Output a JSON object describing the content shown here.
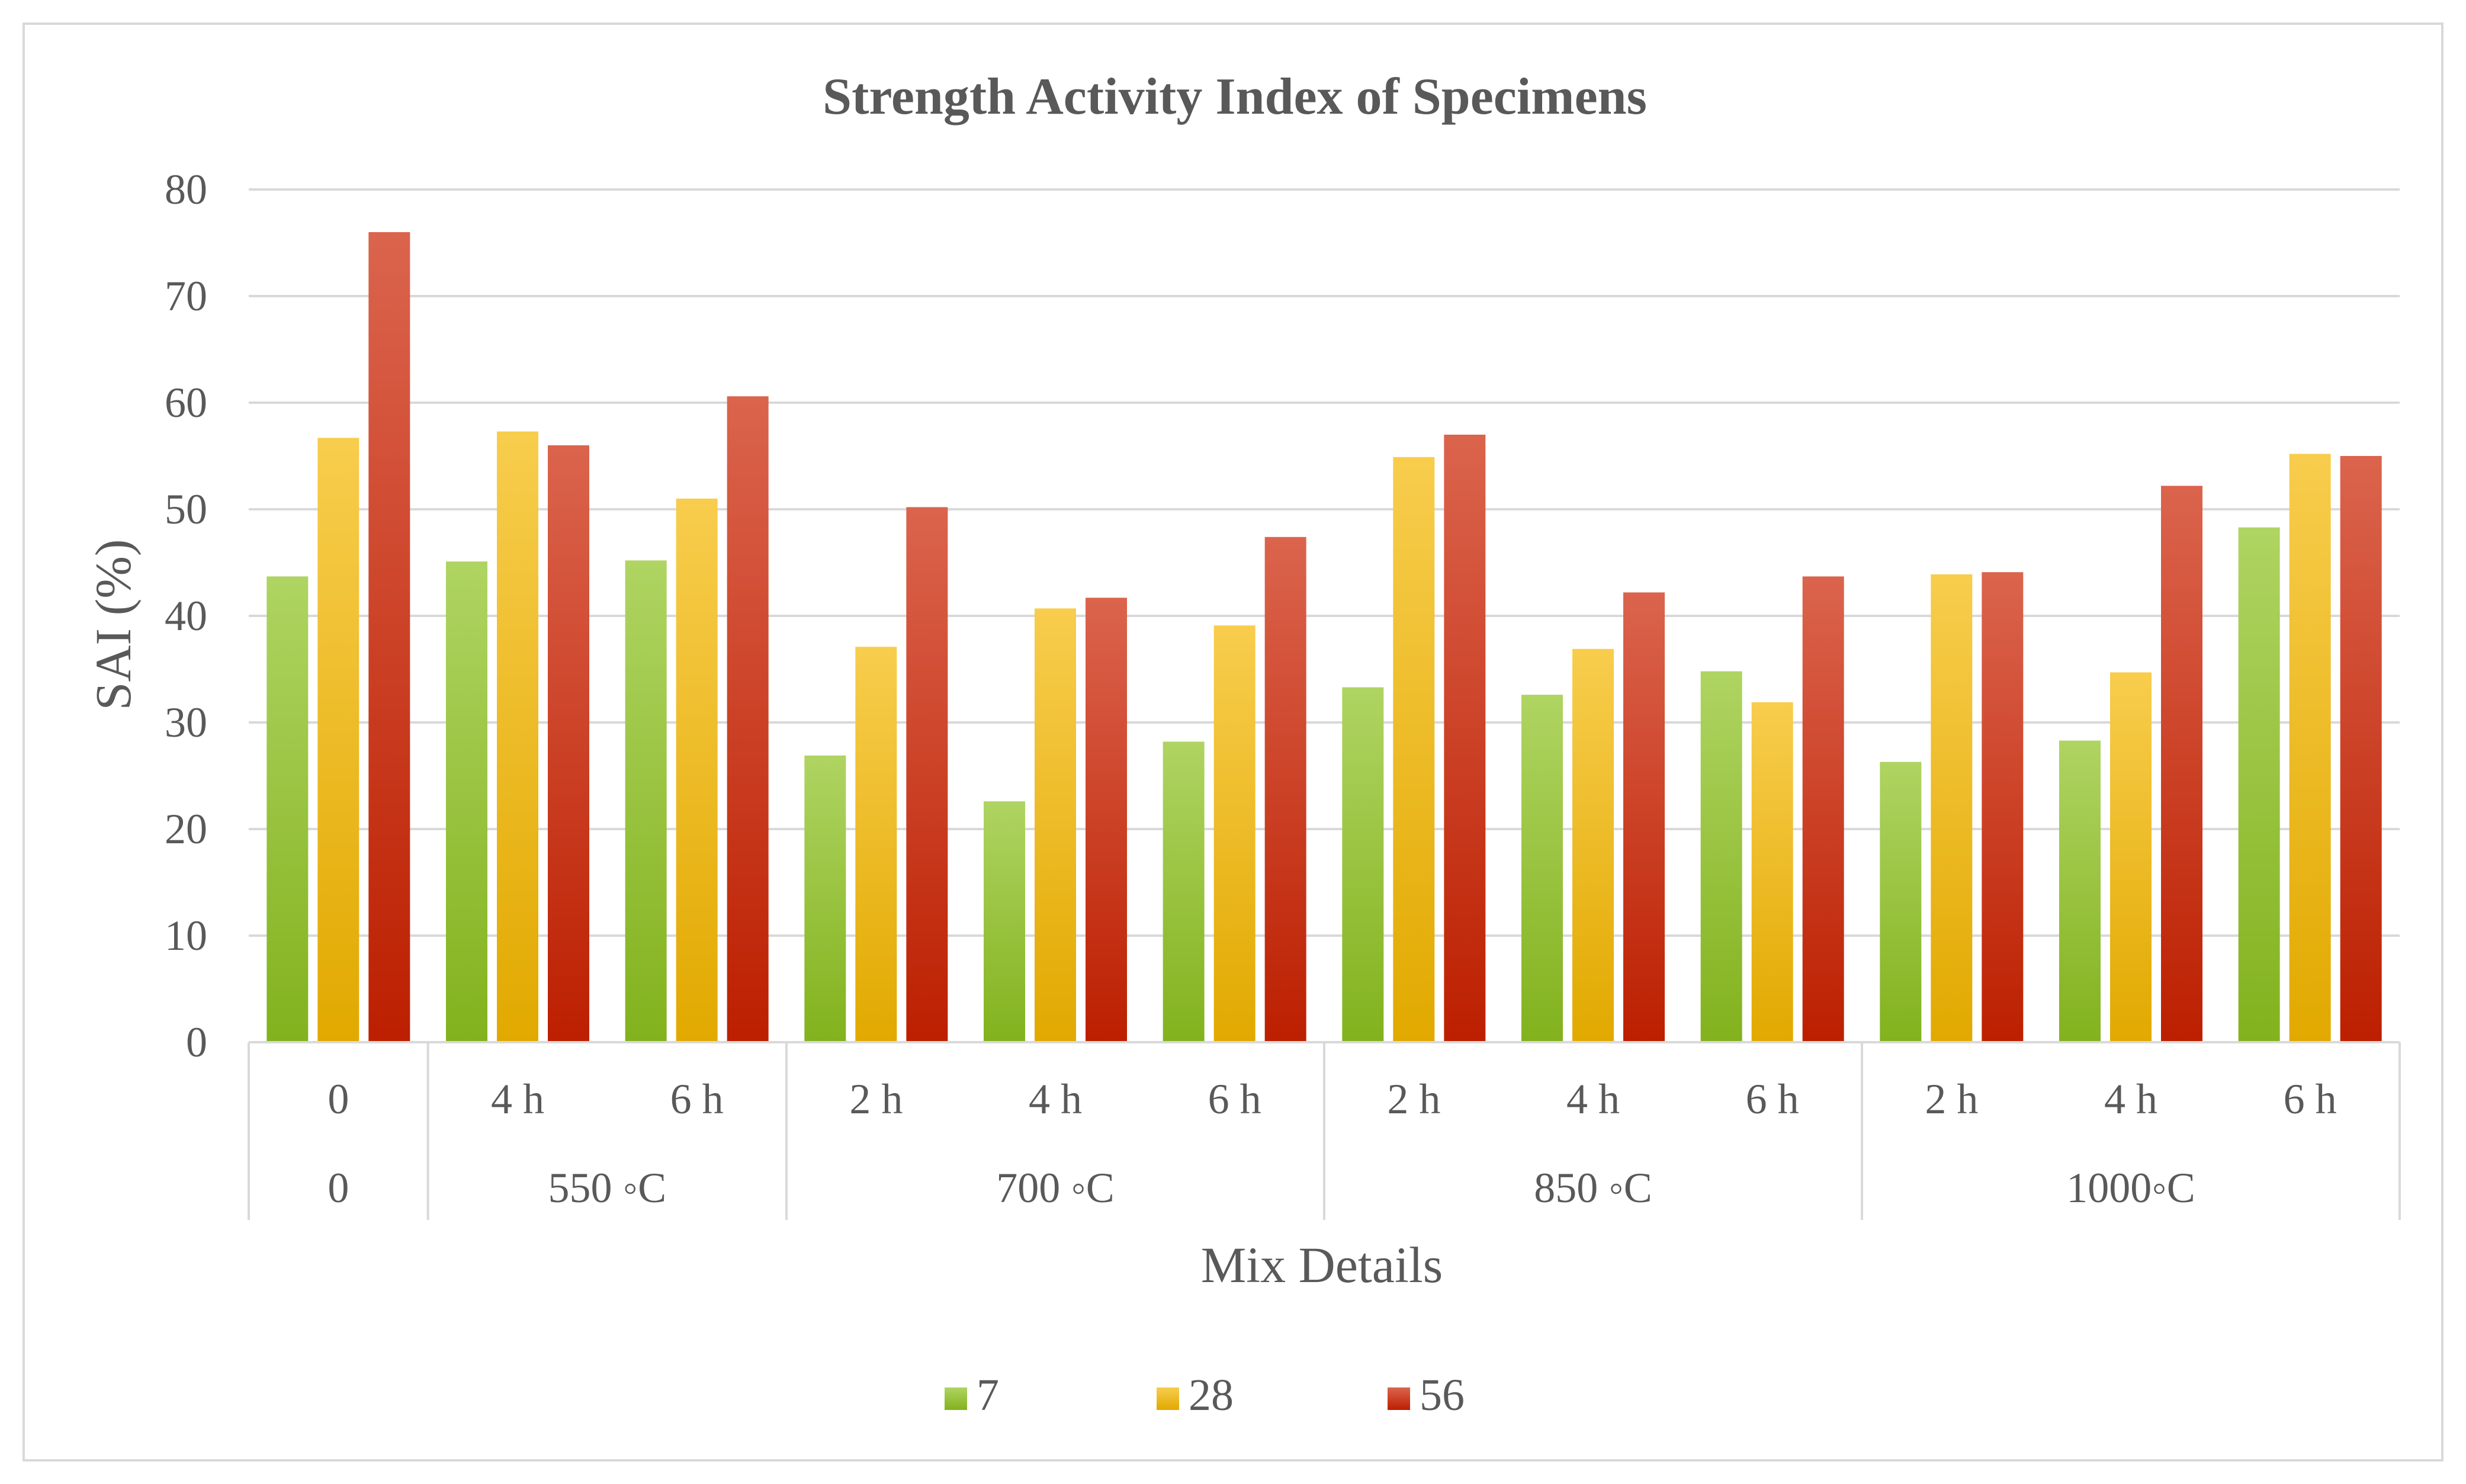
{
  "chart_data": {
    "type": "bar",
    "title": "Strength Activity Index of Specimens",
    "xlabel": "Mix Details",
    "ylabel": "SAI (%)",
    "ylim": [
      0,
      80
    ],
    "yticks": [
      0,
      10,
      20,
      30,
      40,
      50,
      60,
      70,
      80
    ],
    "grid": true,
    "legend_position": "bottom",
    "categories": [
      "0",
      "4 h",
      "6 h",
      "2 h",
      "4 h",
      "6 h",
      "2 h",
      "4 h",
      "6 h",
      "2 h",
      "4 h",
      "6 h"
    ],
    "groups": [
      {
        "label": "0",
        "span": 1
      },
      {
        "label": "550 ◦C",
        "span": 2
      },
      {
        "label": "700 ◦C",
        "span": 3
      },
      {
        "label": "850 ◦C",
        "span": 3
      },
      {
        "label": "1000◦C",
        "span": 3
      }
    ],
    "series": [
      {
        "name": "7",
        "color": "#8dc21f",
        "values": [
          43.7,
          45.1,
          45.2,
          26.9,
          22.6,
          28.2,
          33.3,
          32.6,
          34.8,
          26.3,
          28.3,
          48.3
        ]
      },
      {
        "name": "28",
        "color": "#f5b800",
        "values": [
          56.7,
          57.3,
          51.0,
          37.1,
          40.7,
          39.1,
          54.9,
          36.9,
          31.9,
          43.9,
          34.7,
          55.2
        ]
      },
      {
        "name": "56",
        "color": "#cc2200",
        "values": [
          76.0,
          56.0,
          60.6,
          50.2,
          41.7,
          47.4,
          57.0,
          42.2,
          43.7,
          44.1,
          52.2,
          55.0
        ]
      }
    ]
  }
}
